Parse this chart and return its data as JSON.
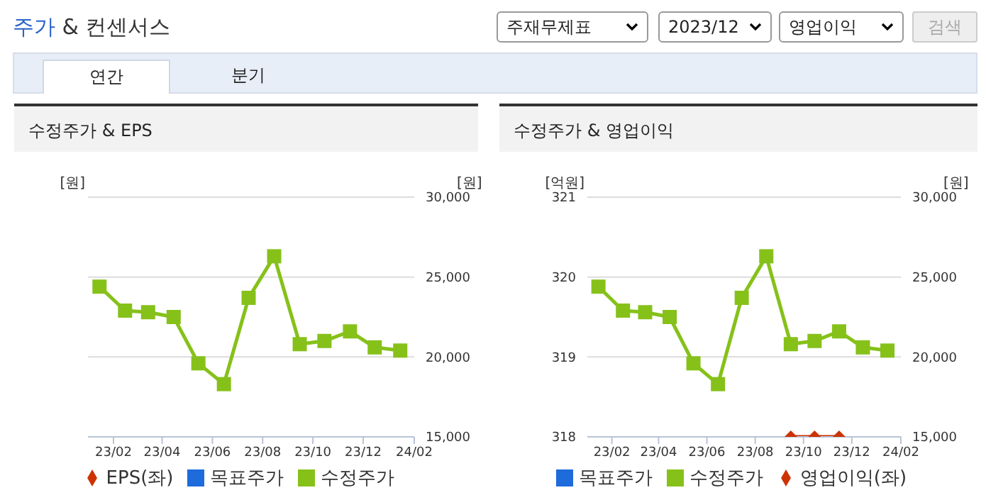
{
  "chart_data": [
    {
      "type": "other",
      "title": "주가 & 컨센서스",
      "annotations": [
        "주재무제표",
        "2023/12",
        "영업이익",
        "검색",
        "연간",
        "분기"
      ]
    },
    {
      "type": "line",
      "title": "수정주가 & EPS",
      "ylabel": "[원]",
      "y2label": "[원]",
      "x": [
        "2023-01-15",
        "2023-02-15",
        "2023-03-15",
        "2023-04-15",
        "2023-05-15",
        "2023-06-15",
        "2023-07-15",
        "2023-08-15",
        "2023-09-15",
        "2023-10-15",
        "2023-11-15",
        "2023-12-15",
        "2024-01-15"
      ],
      "xlim": [
        "2023-01-01",
        "2024-02-01"
      ],
      "xticks": [
        {
          "value": "2023-02-01",
          "label": "23/02"
        },
        {
          "value": "2023-04-01",
          "label": "23/04"
        },
        {
          "value": "2023-06-01",
          "label": "23/06"
        },
        {
          "value": "2023-08-01",
          "label": "23/08"
        },
        {
          "value": "2023-10-01",
          "label": "23/10"
        },
        {
          "value": "2023-12-01",
          "label": "23/12"
        },
        {
          "value": "2024-02-01",
          "label": "24/02"
        }
      ],
      "y2lim": [
        15000,
        30000
      ],
      "y2ticks": [
        {
          "value": 15000,
          "label": "15,000"
        },
        {
          "value": 20000,
          "label": "20,000"
        },
        {
          "value": 25000,
          "label": "25,000"
        },
        {
          "value": 30000,
          "label": "30,000"
        }
      ],
      "grid": "y",
      "legend": "bottom",
      "series": [
        {
          "name": "목표주가",
          "type": "bar",
          "color": "#1e6bdc",
          "values": [
            null,
            null,
            null,
            null,
            null,
            null,
            null,
            null,
            null,
            null,
            null,
            null,
            null
          ]
        },
        {
          "name": "EPS(좌)",
          "type": "line",
          "marker": "diamond",
          "color": "#cc3300",
          "values": [
            null,
            null,
            null,
            null,
            null,
            null,
            null,
            null,
            null,
            null,
            null,
            null,
            null
          ]
        },
        {
          "name": "수정주가",
          "type": "line",
          "marker": "square",
          "axis": "y2",
          "color": "#86c11a",
          "values": [
            24400,
            22900,
            22800,
            22500,
            19600,
            18300,
            23700,
            26300,
            20800,
            21000,
            21600,
            20600,
            20400
          ]
        }
      ]
    },
    {
      "type": "line",
      "title": "수정주가 & 영업이익",
      "ylabel": "[억원]",
      "y2label": "[원]",
      "x": [
        "2023-01-15",
        "2023-02-15",
        "2023-03-15",
        "2023-04-15",
        "2023-05-15",
        "2023-06-15",
        "2023-07-15",
        "2023-08-15",
        "2023-09-15",
        "2023-10-15",
        "2023-11-15",
        "2023-12-15",
        "2024-01-15"
      ],
      "xlim": [
        "2023-01-01",
        "2024-02-01"
      ],
      "xticks": [
        {
          "value": "2023-02-01",
          "label": "23/02"
        },
        {
          "value": "2023-04-01",
          "label": "23/04"
        },
        {
          "value": "2023-06-01",
          "label": "23/06"
        },
        {
          "value": "2023-08-01",
          "label": "23/08"
        },
        {
          "value": "2023-10-01",
          "label": "23/10"
        },
        {
          "value": "2023-12-01",
          "label": "23/12"
        },
        {
          "value": "2024-02-01",
          "label": "24/02"
        }
      ],
      "ylim": [
        318,
        321
      ],
      "yticks": [
        318,
        319,
        320,
        321
      ],
      "y2lim": [
        15000,
        30000
      ],
      "y2ticks": [
        {
          "value": 15000,
          "label": "15,000"
        },
        {
          "value": 20000,
          "label": "20,000"
        },
        {
          "value": 25000,
          "label": "25,000"
        },
        {
          "value": 30000,
          "label": "30,000"
        }
      ],
      "grid": "y",
      "legend": "bottom",
      "series": [
        {
          "name": "목표주가",
          "type": "bar",
          "color": "#1e6bdc",
          "values": [
            null,
            null,
            null,
            null,
            null,
            null,
            null,
            null,
            null,
            null,
            null,
            null,
            null
          ]
        },
        {
          "name": "영업이익(좌)",
          "type": "line",
          "marker": "diamond",
          "color": "#cc3300",
          "values": [
            null,
            null,
            null,
            null,
            null,
            null,
            null,
            null,
            318,
            318,
            318,
            null,
            null
          ]
        },
        {
          "name": "수정주가",
          "type": "line",
          "marker": "square",
          "axis": "y2",
          "color": "#86c11a",
          "values": [
            24400,
            22900,
            22800,
            22500,
            19600,
            18300,
            23700,
            26300,
            20800,
            21000,
            21600,
            20600,
            20400
          ]
        }
      ]
    }
  ]
}
